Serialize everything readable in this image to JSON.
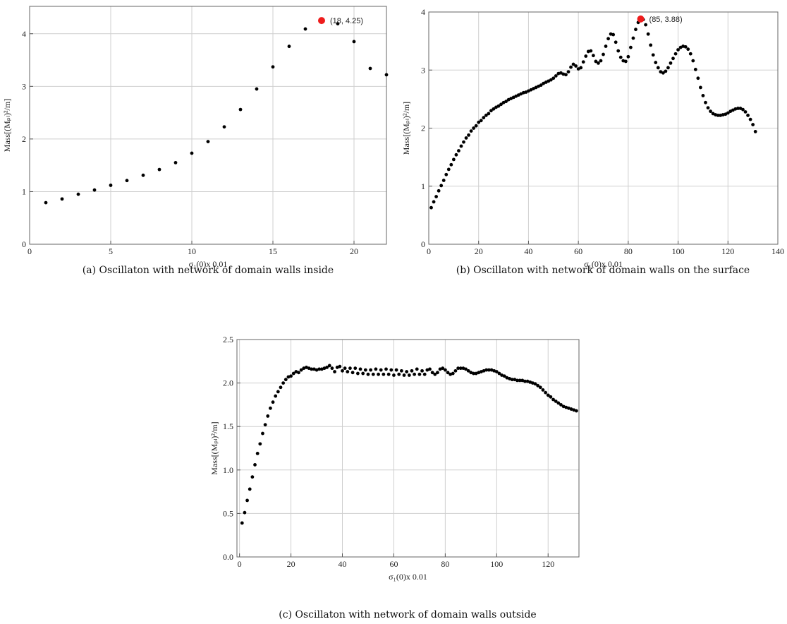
{
  "chart_data": [
    {
      "type": "scatter",
      "xlabel": "σ₁(0)x 0.01",
      "ylabel": "Mass[(Mₚₗ)²/m]",
      "caption": "(a) Oscillaton with network of domain walls inside",
      "x": [
        1,
        2,
        3,
        4,
        5,
        6,
        7,
        8,
        9,
        10,
        11,
        12,
        13,
        14,
        15,
        16,
        17,
        19,
        20,
        21,
        22
      ],
      "values": [
        0.79,
        0.86,
        0.95,
        1.03,
        1.12,
        1.21,
        1.31,
        1.42,
        1.55,
        1.73,
        1.95,
        2.23,
        2.56,
        2.95,
        3.37,
        3.76,
        4.09,
        4.19,
        3.85,
        3.34,
        3.22
      ],
      "color": "#000000",
      "highlight": {
        "x": 18,
        "y": 4.25,
        "color": "#ee1c1c",
        "label": "(18, 4.25)"
      },
      "xlim": [
        0,
        22
      ],
      "ylim": [
        0,
        4.52
      ],
      "xticks": [
        0,
        5,
        10,
        15,
        20
      ],
      "yticks": [
        0,
        1,
        2,
        3,
        4
      ],
      "grid": true
    },
    {
      "type": "scatter",
      "xlabel": "σ₁(0)x 0.01",
      "ylabel": "Mass[(Mₚₗ)²/m]",
      "caption": "(b) Oscillaton with network of domain walls on the surface",
      "x": [
        1,
        2,
        3,
        4,
        5,
        6,
        7,
        8,
        9,
        10,
        11,
        12,
        13,
        14,
        15,
        16,
        17,
        18,
        19,
        20,
        21,
        22,
        23,
        24,
        25,
        26,
        27,
        28,
        29,
        30,
        31,
        32,
        33,
        34,
        35,
        36,
        37,
        38,
        39,
        40,
        41,
        42,
        43,
        44,
        45,
        46,
        47,
        48,
        49,
        50,
        51,
        52,
        53,
        54,
        55,
        56,
        57,
        58,
        59,
        60,
        61,
        62,
        63,
        64,
        65,
        66,
        67,
        68,
        69,
        70,
        71,
        72,
        73,
        74,
        75,
        76,
        77,
        78,
        79,
        80,
        81,
        82,
        83,
        84,
        86,
        87,
        88,
        89,
        90,
        91,
        92,
        93,
        94,
        95,
        96,
        97,
        98,
        99,
        100,
        101,
        102,
        103,
        104,
        105,
        106,
        107,
        108,
        109,
        110,
        111,
        112,
        113,
        114,
        115,
        116,
        117,
        118,
        119,
        120,
        121,
        122,
        123,
        124,
        125,
        126,
        127,
        128,
        129,
        130,
        131
      ],
      "values": [
        0.63,
        0.73,
        0.82,
        0.92,
        1.01,
        1.1,
        1.2,
        1.29,
        1.37,
        1.46,
        1.54,
        1.61,
        1.69,
        1.76,
        1.83,
        1.88,
        1.95,
        2.0,
        2.04,
        2.1,
        2.13,
        2.18,
        2.22,
        2.25,
        2.3,
        2.33,
        2.36,
        2.38,
        2.41,
        2.44,
        2.46,
        2.49,
        2.51,
        2.53,
        2.55,
        2.57,
        2.59,
        2.61,
        2.62,
        2.64,
        2.66,
        2.68,
        2.7,
        2.72,
        2.74,
        2.77,
        2.79,
        2.81,
        2.83,
        2.86,
        2.9,
        2.94,
        2.95,
        2.93,
        2.92,
        2.97,
        3.05,
        3.1,
        3.07,
        3.02,
        3.04,
        3.14,
        3.24,
        3.32,
        3.33,
        3.25,
        3.15,
        3.12,
        3.16,
        3.27,
        3.41,
        3.54,
        3.62,
        3.61,
        3.48,
        3.33,
        3.22,
        3.16,
        3.15,
        3.23,
        3.39,
        3.55,
        3.7,
        3.82,
        3.87,
        3.78,
        3.62,
        3.43,
        3.26,
        3.13,
        3.04,
        2.97,
        2.95,
        2.98,
        3.04,
        3.12,
        3.2,
        3.28,
        3.35,
        3.39,
        3.41,
        3.4,
        3.36,
        3.28,
        3.16,
        3.01,
        2.86,
        2.7,
        2.56,
        2.44,
        2.35,
        2.29,
        2.25,
        2.23,
        2.22,
        2.22,
        2.23,
        2.24,
        2.26,
        2.29,
        2.31,
        2.33,
        2.34,
        2.34,
        2.32,
        2.28,
        2.22,
        2.15,
        2.06,
        1.94
      ],
      "color": "#000000",
      "highlight": {
        "x": 85,
        "y": 3.88,
        "color": "#ee1c1c",
        "label": "(85, 3.88)"
      },
      "xlim": [
        0,
        140
      ],
      "ylim": [
        0,
        4
      ],
      "xticks": [
        0,
        20,
        40,
        60,
        80,
        100,
        120,
        140
      ],
      "yticks": [
        0,
        1,
        2,
        3,
        4
      ],
      "grid": true
    },
    {
      "type": "scatter",
      "xlabel": "σ₁(0)x 0.01",
      "ylabel": "Mass[(Mₚₗ)²/m]",
      "caption": "(c) Oscillaton with network of domain walls outside",
      "x": [
        1,
        2,
        3,
        4,
        5,
        6,
        7,
        8,
        9,
        10,
        11,
        12,
        13,
        14,
        15,
        16,
        17,
        18,
        19,
        20,
        21,
        22,
        23,
        24,
        25,
        26,
        27,
        28,
        29,
        30,
        31,
        32,
        33,
        34,
        35,
        36,
        37,
        38,
        39,
        40,
        41,
        42,
        43,
        44,
        45,
        46,
        47,
        48,
        49,
        50,
        51,
        52,
        53,
        54,
        55,
        56,
        57,
        58,
        59,
        60,
        61,
        62,
        63,
        64,
        65,
        66,
        67,
        68,
        69,
        70,
        71,
        72,
        73,
        74,
        75,
        76,
        77,
        78,
        79,
        80,
        81,
        82,
        83,
        84,
        85,
        86,
        87,
        88,
        89,
        90,
        91,
        92,
        93,
        94,
        95,
        96,
        97,
        98,
        99,
        100,
        101,
        102,
        103,
        104,
        105,
        106,
        107,
        108,
        109,
        110,
        111,
        112,
        113,
        114,
        115,
        116,
        117,
        118,
        119,
        120,
        121,
        122,
        123,
        124,
        125,
        126,
        127,
        128,
        129,
        130,
        131
      ],
      "values": [
        0.39,
        0.51,
        0.65,
        0.78,
        0.92,
        1.06,
        1.19,
        1.3,
        1.42,
        1.52,
        1.62,
        1.71,
        1.78,
        1.85,
        1.9,
        1.95,
        2.0,
        2.04,
        2.07,
        2.08,
        2.11,
        2.13,
        2.12,
        2.15,
        2.17,
        2.18,
        2.17,
        2.16,
        2.16,
        2.15,
        2.16,
        2.16,
        2.17,
        2.18,
        2.2,
        2.17,
        2.13,
        2.18,
        2.19,
        2.14,
        2.17,
        2.13,
        2.17,
        2.12,
        2.17,
        2.11,
        2.16,
        2.11,
        2.15,
        2.1,
        2.15,
        2.1,
        2.16,
        2.1,
        2.15,
        2.1,
        2.16,
        2.1,
        2.15,
        2.09,
        2.15,
        2.1,
        2.14,
        2.09,
        2.13,
        2.09,
        2.14,
        2.1,
        2.16,
        2.1,
        2.14,
        2.1,
        2.15,
        2.16,
        2.12,
        2.1,
        2.12,
        2.16,
        2.17,
        2.15,
        2.12,
        2.1,
        2.11,
        2.14,
        2.17,
        2.17,
        2.17,
        2.16,
        2.14,
        2.12,
        2.11,
        2.11,
        2.12,
        2.13,
        2.14,
        2.15,
        2.15,
        2.15,
        2.14,
        2.13,
        2.11,
        2.09,
        2.08,
        2.06,
        2.05,
        2.04,
        2.04,
        2.03,
        2.03,
        2.03,
        2.02,
        2.02,
        2.01,
        2.0,
        1.99,
        1.97,
        1.95,
        1.92,
        1.89,
        1.86,
        1.84,
        1.81,
        1.79,
        1.77,
        1.75,
        1.73,
        1.72,
        1.71,
        1.7,
        1.69,
        1.68
      ],
      "color": "#000000",
      "xlim": [
        -1,
        132
      ],
      "ylim": [
        0,
        2.5
      ],
      "xticks": [
        0,
        20,
        40,
        60,
        80,
        100,
        120
      ],
      "yticks": [
        {
          "value": 0,
          "label": "0.0"
        },
        0.5,
        {
          "value": 1,
          "label": "1.0"
        },
        1.5,
        {
          "value": 2,
          "label": "2.0"
        },
        2.5
      ],
      "grid": true
    }
  ]
}
